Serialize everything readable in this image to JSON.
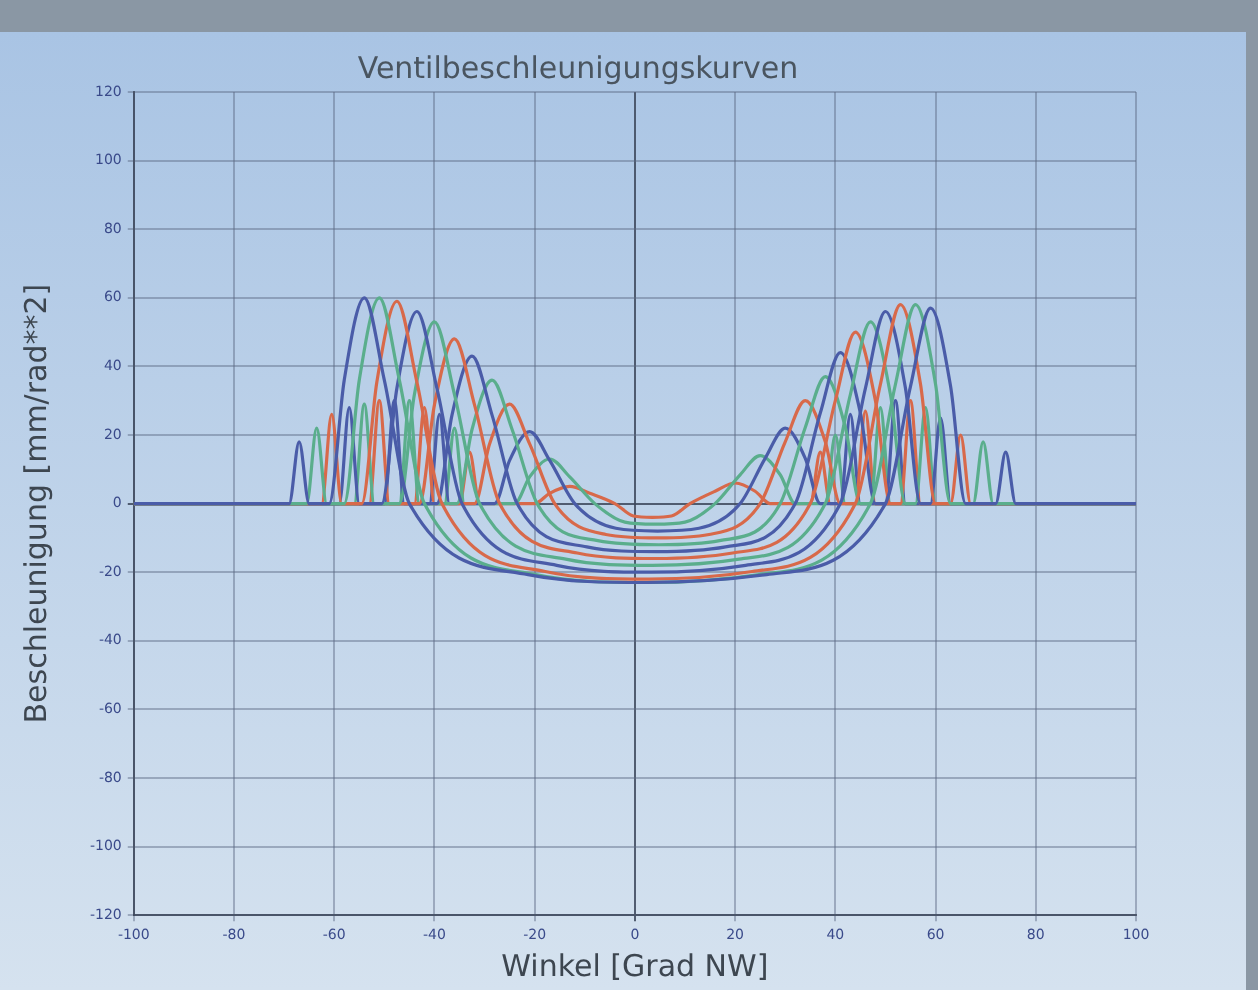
{
  "chart_data": {
    "type": "line",
    "title": "Ventilbeschleunigungskurven",
    "xlabel": "Winkel [Grad NW]",
    "ylabel": "Beschleunigung [mm/rad**2]",
    "xlim": [
      -100,
      100
    ],
    "xticks": [
      -100,
      -80,
      -60,
      -40,
      -20,
      0,
      20,
      40,
      60,
      80,
      100
    ],
    "ylim": [
      -120,
      120
    ],
    "yticks": [
      -120,
      -100,
      -80,
      -60,
      -40,
      -20,
      0,
      20,
      40,
      60,
      80,
      100,
      120
    ],
    "grid": true,
    "legend": false,
    "marker": "none",
    "line_style": "solid",
    "series": [
      {
        "color": "#4a5ca8",
        "x": [
          -100,
          -69,
          -67,
          -65,
          -61,
          -58,
          -54,
          -50,
          -45,
          -21.3,
          2.5,
          26.3,
          50,
          55,
          59,
          63,
          66,
          72,
          74,
          76,
          100
        ],
        "values": [
          0,
          0,
          18,
          0,
          0,
          36,
          60,
          36,
          0,
          -20.7,
          -23,
          -20.7,
          0,
          34.2,
          57,
          34.2,
          0,
          0,
          15,
          0,
          0
        ]
      },
      {
        "color": "#5aae8c",
        "x": [
          -100,
          -65.5,
          -63.5,
          -61.5,
          -58,
          -55,
          -51,
          -47,
          -42,
          -19.8,
          2.5,
          24.8,
          47,
          52,
          56,
          60,
          63,
          67.5,
          69.5,
          71.5,
          100
        ],
        "values": [
          0,
          0,
          22,
          0,
          0,
          36,
          60,
          36,
          0,
          -20.7,
          -23,
          -20.7,
          0,
          34.8,
          58,
          34.8,
          0,
          0,
          18,
          0,
          0
        ]
      },
      {
        "color": "#d8694a",
        "x": [
          -100,
          -62.5,
          -60.5,
          -58.5,
          -54.5,
          -51.5,
          -47.5,
          -43.5,
          -38.5,
          -17.9,
          2.8,
          23.4,
          44,
          49,
          53,
          57,
          60,
          63,
          65,
          67,
          100
        ],
        "values": [
          0,
          0,
          26,
          0,
          0,
          35.4,
          59,
          35.4,
          0,
          -19.8,
          -22,
          -19.8,
          0,
          34.8,
          58,
          34.8,
          0,
          0,
          20,
          0,
          0
        ]
      },
      {
        "color": "#4a5ca8",
        "x": [
          -100,
          -59,
          -57,
          -55,
          -50.5,
          -47.5,
          -43.5,
          -39.5,
          -34.5,
          -15.6,
          3.3,
          22.1,
          41,
          46,
          50,
          54,
          57,
          59,
          61,
          63,
          100
        ],
        "values": [
          0,
          0,
          28,
          0,
          0,
          33.6,
          56,
          33.6,
          0,
          -18,
          -20,
          -18,
          0,
          33.6,
          56,
          33.6,
          0,
          0,
          25,
          0,
          0
        ]
      },
      {
        "color": "#5aae8c",
        "x": [
          -100,
          -56,
          -54,
          -52,
          -47,
          -44,
          -40,
          -36,
          -31,
          -13.8,
          3.5,
          20.8,
          38,
          43,
          47,
          51,
          54,
          56,
          58,
          60,
          100
        ],
        "values": [
          0,
          0,
          29,
          0,
          0,
          31.8,
          53,
          31.8,
          0,
          -16.2,
          -18,
          -16.2,
          0,
          31.8,
          53,
          31.8,
          0,
          0,
          28,
          0,
          0
        ]
      },
      {
        "color": "#d8694a",
        "x": [
          -100,
          -53,
          -51,
          -49,
          -43,
          -40,
          -36,
          -32,
          -27,
          -11.5,
          4,
          19.5,
          35,
          40,
          44,
          48,
          51,
          53,
          55,
          57,
          100
        ],
        "values": [
          0,
          0,
          30,
          0,
          0,
          28.8,
          48,
          28.8,
          0,
          -14.4,
          -16,
          -14.4,
          0,
          30,
          50,
          30,
          0,
          0,
          30,
          0,
          0
        ]
      },
      {
        "color": "#4a5ca8",
        "x": [
          -100,
          -50,
          -48,
          -46,
          -39.5,
          -36.5,
          -32.5,
          -28.5,
          -23.5,
          -9.6,
          4.3,
          18.1,
          32,
          37,
          41,
          45,
          48,
          50,
          52,
          54,
          100
        ],
        "values": [
          0,
          0,
          30,
          0,
          0,
          25.8,
          43,
          25.8,
          0,
          -12.6,
          -14,
          -12.6,
          0,
          26.4,
          44,
          26.4,
          0,
          0,
          30,
          0,
          0
        ]
      },
      {
        "color": "#5aae8c",
        "x": [
          -100,
          -47,
          -45,
          -43,
          -35.5,
          -32.5,
          -28.5,
          -24.5,
          -19.5,
          -7.4,
          4.8,
          16.9,
          29,
          34,
          38,
          42,
          45,
          47,
          49,
          51,
          100
        ],
        "values": [
          0,
          0,
          30,
          0,
          0,
          21.6,
          36,
          21.6,
          0,
          -10.8,
          -12,
          -10.8,
          0,
          22.2,
          37,
          22.2,
          0,
          0,
          28,
          0,
          0
        ]
      },
      {
        "color": "#d8694a",
        "x": [
          -100,
          -44,
          -42,
          -40,
          -32,
          -29,
          -25,
          -21,
          -16,
          -5.8,
          4.5,
          14.8,
          25,
          30,
          34,
          38,
          41,
          44,
          46,
          48,
          100
        ],
        "values": [
          0,
          0,
          28,
          0,
          0,
          17.4,
          29,
          17.4,
          0,
          -9,
          -10,
          -9,
          0,
          18,
          30,
          18,
          0,
          0,
          27,
          0,
          0
        ]
      },
      {
        "color": "#4a5ca8",
        "x": [
          -100,
          -41,
          -39,
          -37,
          -28,
          -25,
          -21,
          -17,
          -12,
          -3.8,
          4.5,
          12.8,
          21,
          26,
          30,
          34,
          37,
          41,
          43,
          45,
          100
        ],
        "values": [
          0,
          0,
          26,
          0,
          0,
          12.6,
          21,
          12.6,
          0,
          -7.2,
          -8,
          -7.2,
          0,
          13.2,
          22,
          13.2,
          0,
          0,
          26,
          0,
          0
        ]
      },
      {
        "color": "#5aae8c",
        "x": [
          -100,
          -38,
          -36,
          -34,
          -24,
          -21,
          -17,
          -13,
          -8,
          -2,
          4,
          10,
          16,
          21,
          25,
          29,
          32,
          38,
          40,
          42,
          100
        ],
        "values": [
          0,
          0,
          22,
          0,
          0,
          7.8,
          13,
          7.8,
          0,
          -5.4,
          -6,
          -5.4,
          0,
          8.4,
          14,
          8.4,
          0,
          0,
          20,
          0,
          0
        ]
      },
      {
        "color": "#d8694a",
        "x": [
          -100,
          -35,
          -33,
          -31,
          -20,
          -17,
          -13,
          -9,
          -4,
          -0.3,
          3.5,
          7.3,
          11,
          16,
          20,
          24,
          27,
          35,
          37,
          39,
          100
        ],
        "values": [
          0,
          0,
          15,
          0,
          0,
          3,
          5,
          3,
          0,
          -3.6,
          -4,
          -3.6,
          0,
          3.6,
          6,
          3.6,
          0,
          0,
          15,
          0,
          0
        ]
      }
    ]
  }
}
